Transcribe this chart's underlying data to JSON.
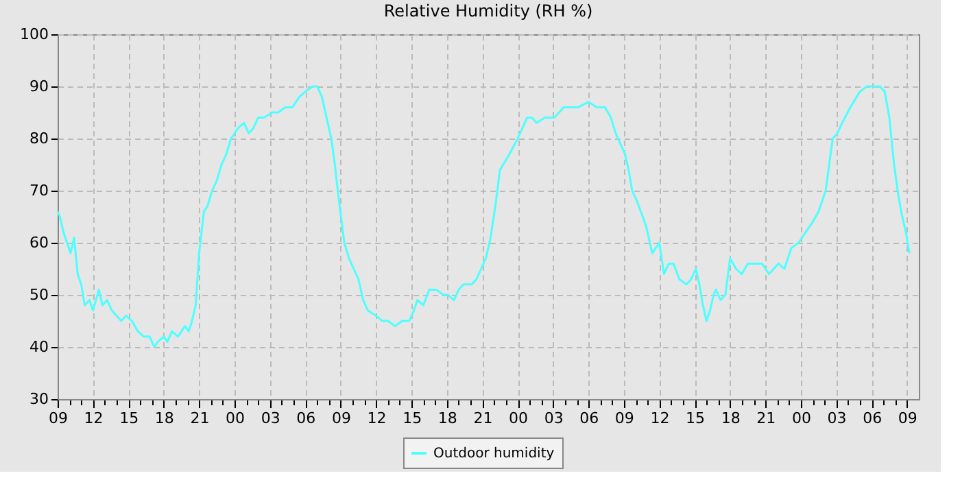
{
  "chart_data": {
    "type": "line",
    "title": "Relative Humidity (RH %)",
    "x": [
      9,
      9.2,
      9.5,
      9.8,
      10.1,
      10.4,
      10.7,
      11.0,
      11.3,
      11.7,
      12.0,
      12.5,
      12.8,
      13.2,
      13.6,
      14.0,
      14.4,
      14.8,
      15.3,
      15.8,
      16.3,
      16.8,
      17.2,
      17.5,
      18.0,
      18.3,
      18.7,
      19.2,
      19.8,
      20.1,
      20.4,
      20.7,
      21.0,
      21.2,
      21.4,
      21.7,
      22.1,
      22.5,
      22.9,
      23.3,
      23.7,
      24.3,
      24.8,
      25.2,
      25.6,
      26.0,
      26.5,
      27.2,
      27.7,
      28.3,
      28.9,
      29.5,
      30.0,
      30.6,
      31.0,
      31.4,
      31.8,
      32.2,
      32.5,
      32.8,
      33.3,
      33.7,
      34.1,
      34.5,
      34.9,
      35.3,
      36.0,
      36.5,
      37.0,
      37.6,
      38.2,
      38.8,
      39.2,
      39.5,
      40.0,
      40.5,
      41.1,
      41.7,
      42.1,
      42.6,
      43.0,
      43.4,
      44.1,
      44.5,
      44.9,
      45.3,
      45.7,
      46.1,
      46.5,
      47.3,
      48.0,
      48.8,
      49.2,
      49.6,
      50.3,
      51.1,
      51.9,
      52.5,
      53.1,
      54.0,
      54.7,
      55.4,
      55.9,
      56.3,
      56.7,
      57.1,
      57.4,
      57.7,
      58.1,
      58.6,
      58.9,
      59.4,
      60.0,
      60.4,
      60.8,
      61.2,
      61.7,
      62.3,
      62.7,
      63.1,
      63.4,
      63.7,
      64.0,
      64.3,
      64.6,
      64.8,
      65.2,
      65.6,
      66.0,
      66.5,
      67.0,
      67.5,
      68.1,
      68.7,
      69.3,
      70.1,
      70.6,
      71.2,
      71.8,
      72.4,
      73.0,
      73.5,
      74.1,
      74.4,
      74.7,
      75.1,
      75.5,
      76.2,
      77.0,
      77.6,
      78.2,
      78.7,
      79.1,
      79.5,
      79.9,
      80.2,
      80.5,
      80.9,
      81.2
    ],
    "series": [
      {
        "name": "Outdoor humidity",
        "color": "#4dffff",
        "values": [
          66,
          65,
          62,
          60,
          58,
          61,
          54,
          52,
          48,
          49,
          47,
          51,
          48,
          49,
          47,
          46,
          45,
          46,
          45,
          43,
          42,
          42,
          40,
          41,
          42,
          41,
          43,
          42,
          44,
          43,
          45,
          48,
          58,
          62,
          66,
          67,
          70,
          72,
          75,
          77,
          80,
          82,
          83,
          81,
          82,
          84,
          84,
          85,
          85,
          86,
          86,
          88,
          89,
          90,
          90,
          88,
          84,
          80,
          75,
          69,
          60,
          57,
          55,
          53,
          49,
          47,
          46,
          45,
          45,
          44,
          45,
          45,
          47,
          49,
          48,
          51,
          51,
          50,
          50,
          49,
          51,
          52,
          52,
          53,
          55,
          57,
          61,
          67,
          74,
          77,
          80,
          84,
          84,
          83,
          84,
          84,
          86,
          86,
          86,
          87,
          86,
          86,
          84,
          81,
          79,
          77,
          74,
          70,
          68,
          65,
          63,
          58,
          60,
          54,
          56,
          56,
          53,
          52,
          53,
          55,
          52,
          48,
          45,
          47,
          50,
          51,
          49,
          50,
          57,
          55,
          54,
          56,
          56,
          56,
          54,
          56,
          55,
          59,
          60,
          62,
          64,
          66,
          70,
          75,
          80,
          81,
          83,
          86,
          89,
          90,
          90,
          90,
          89,
          84,
          75,
          70,
          66,
          62,
          58
        ]
      }
    ],
    "xlim": [
      9,
      82
    ],
    "xticks": [
      {
        "value": 9,
        "label": "09"
      },
      {
        "value": 10,
        "label": null
      },
      {
        "value": 11,
        "label": null
      },
      {
        "value": 12,
        "label": "12"
      },
      {
        "value": 13,
        "label": null
      },
      {
        "value": 14,
        "label": null
      },
      {
        "value": 15,
        "label": "15"
      },
      {
        "value": 16,
        "label": null
      },
      {
        "value": 17,
        "label": null
      },
      {
        "value": 18,
        "label": "18"
      },
      {
        "value": 19,
        "label": null
      },
      {
        "value": 20,
        "label": null
      },
      {
        "value": 21,
        "label": "21"
      },
      {
        "value": 22,
        "label": null
      },
      {
        "value": 23,
        "label": null
      },
      {
        "value": 24,
        "label": "00"
      },
      {
        "value": 25,
        "label": null
      },
      {
        "value": 26,
        "label": null
      },
      {
        "value": 27,
        "label": "03"
      },
      {
        "value": 28,
        "label": null
      },
      {
        "value": 29,
        "label": null
      },
      {
        "value": 30,
        "label": "06"
      },
      {
        "value": 31,
        "label": null
      },
      {
        "value": 32,
        "label": null
      },
      {
        "value": 33,
        "label": "09"
      },
      {
        "value": 34,
        "label": null
      },
      {
        "value": 35,
        "label": null
      },
      {
        "value": 36,
        "label": "12"
      },
      {
        "value": 37,
        "label": null
      },
      {
        "value": 38,
        "label": null
      },
      {
        "value": 39,
        "label": "15"
      },
      {
        "value": 40,
        "label": null
      },
      {
        "value": 41,
        "label": null
      },
      {
        "value": 42,
        "label": "18"
      },
      {
        "value": 43,
        "label": null
      },
      {
        "value": 44,
        "label": null
      },
      {
        "value": 45,
        "label": "21"
      },
      {
        "value": 46,
        "label": null
      },
      {
        "value": 47,
        "label": null
      },
      {
        "value": 48,
        "label": "00"
      },
      {
        "value": 49,
        "label": null
      },
      {
        "value": 50,
        "label": null
      },
      {
        "value": 51,
        "label": "03"
      },
      {
        "value": 52,
        "label": null
      },
      {
        "value": 53,
        "label": null
      },
      {
        "value": 54,
        "label": "06"
      },
      {
        "value": 55,
        "label": null
      },
      {
        "value": 56,
        "label": null
      },
      {
        "value": 57,
        "label": "09"
      },
      {
        "value": 58,
        "label": null
      },
      {
        "value": 59,
        "label": null
      },
      {
        "value": 60,
        "label": "12"
      },
      {
        "value": 61,
        "label": null
      },
      {
        "value": 62,
        "label": null
      },
      {
        "value": 63,
        "label": "15"
      },
      {
        "value": 64,
        "label": null
      },
      {
        "value": 65,
        "label": null
      },
      {
        "value": 66,
        "label": "18"
      },
      {
        "value": 67,
        "label": null
      },
      {
        "value": 68,
        "label": null
      },
      {
        "value": 69,
        "label": "21"
      },
      {
        "value": 70,
        "label": null
      },
      {
        "value": 71,
        "label": null
      },
      {
        "value": 72,
        "label": "00"
      },
      {
        "value": 73,
        "label": null
      },
      {
        "value": 74,
        "label": null
      },
      {
        "value": 75,
        "label": "03"
      },
      {
        "value": 76,
        "label": null
      },
      {
        "value": 77,
        "label": null
      },
      {
        "value": 78,
        "label": "06"
      },
      {
        "value": 79,
        "label": null
      },
      {
        "value": 80,
        "label": null
      },
      {
        "value": 81,
        "label": "09"
      }
    ],
    "ylim": [
      30,
      100
    ],
    "yticks": [
      30,
      40,
      50,
      60,
      70,
      80,
      90,
      100
    ],
    "grid": true,
    "legend": "bottom",
    "marker": "none",
    "line_style": "solid"
  }
}
